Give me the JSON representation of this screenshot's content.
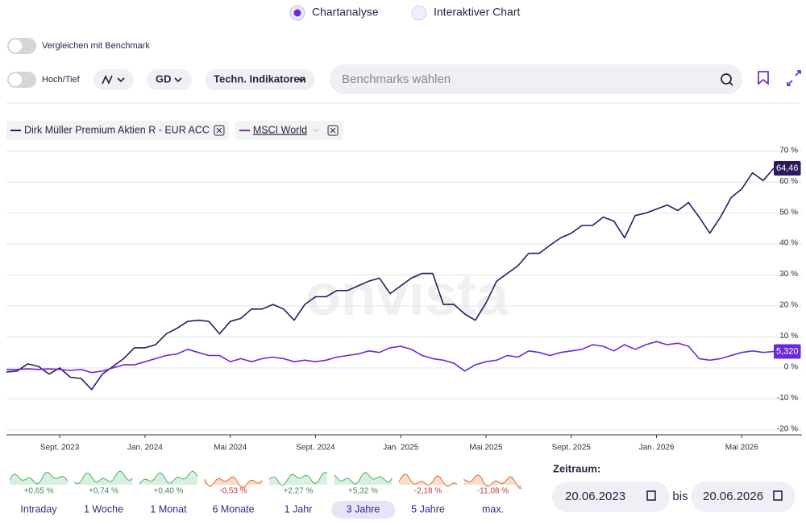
{
  "view_tabs": [
    "Chartanalyse",
    "Interaktiver Chart"
  ],
  "toggles": [
    "Vergleichen mit Benchmark",
    "Hoch/Tief"
  ],
  "toolbar": {
    "average": "GD",
    "indicators": "Techn. Indikatoren",
    "search_placeholder": "Benchmarks wählen"
  },
  "watermark": "onvista",
  "chart_data": {
    "type": "line",
    "categories": [
      null,
      null,
      null,
      null,
      null,
      "Sept. 2023",
      null,
      null,
      null,
      null,
      null,
      null,
      null,
      "Jan. 2024",
      null,
      null,
      null,
      null,
      null,
      null,
      null,
      "Mai 2024",
      null,
      null,
      null,
      null,
      null,
      null,
      null,
      "Sept. 2024",
      null,
      null,
      null,
      null,
      null,
      null,
      null,
      "Jan. 2025",
      null,
      null,
      null,
      null,
      null,
      null,
      null,
      "Mai 2025",
      null,
      null,
      null,
      null,
      null,
      null,
      null,
      "Sept. 2025",
      null,
      null,
      null,
      null,
      null,
      null,
      null,
      "Jan. 2026",
      null,
      null,
      null,
      null,
      null,
      null,
      null,
      "Mai 2026",
      null,
      null,
      null
    ],
    "series": [
      {
        "name": "Dirk Müller Premium Aktien R - EUR ACC",
        "color": "#2d1a5e",
        "values": [
          -1.3,
          -1,
          1.3,
          0.5,
          -2,
          0,
          -3,
          -3.4,
          -7,
          -2,
          0.5,
          3,
          6.5,
          6.5,
          7.5,
          11,
          12.8,
          15,
          15.4,
          15,
          11,
          15,
          16,
          19,
          19,
          20.5,
          19,
          15.4,
          20.5,
          23,
          23,
          25,
          25,
          26.5,
          28,
          29,
          24,
          26.5,
          29,
          30.5,
          30.5,
          20.5,
          20.5,
          17.4,
          15.4,
          21,
          28,
          30.5,
          33,
          37,
          37,
          39.6,
          42,
          43.5,
          46,
          46,
          48.7,
          47.4,
          42,
          49.2,
          50,
          51.3,
          52.6,
          50.8,
          53.4,
          48.7,
          43.5,
          48.7,
          55,
          57.8,
          63,
          60.5,
          64.46
        ],
        "value_labels": [
          null,
          null,
          null,
          null,
          null,
          null,
          null,
          null,
          null,
          null,
          null,
          null,
          null,
          null,
          null,
          null,
          null,
          null,
          null,
          null,
          null,
          null,
          null,
          null,
          null,
          null,
          null,
          null,
          null,
          null,
          null,
          null,
          null,
          null,
          null,
          null,
          null,
          null,
          null,
          null,
          null,
          null,
          null,
          null,
          null,
          null,
          null,
          null,
          null,
          null,
          null,
          null,
          null,
          null,
          null,
          null,
          null,
          null,
          null,
          null,
          null,
          null,
          null,
          null,
          null,
          null,
          null,
          null,
          null,
          null,
          null,
          null,
          "64,46"
        ]
      },
      {
        "name": "MSCI World",
        "color": "#6a2bd6",
        "values": [
          -0.5,
          -0.5,
          -0.3,
          -0.5,
          -0.3,
          -0.5,
          -0.8,
          -0.5,
          -1.5,
          -1,
          0,
          1,
          1,
          2,
          3,
          4,
          4.5,
          6,
          5,
          4,
          4,
          2,
          3,
          2,
          3,
          3.5,
          3,
          2,
          2.5,
          2,
          2.5,
          3.5,
          4,
          4.5,
          5.5,
          5,
          6.5,
          7,
          6,
          4,
          3,
          2.5,
          1.5,
          -1,
          1,
          2,
          2.5,
          4,
          3.5,
          5.5,
          5,
          4,
          5,
          5.5,
          6,
          7.5,
          7,
          5.5,
          7.5,
          6,
          7.5,
          8.5,
          7.5,
          8,
          7,
          3,
          2.5,
          3,
          4,
          5,
          5.5,
          5,
          5.32
        ],
        "value_labels": [
          null,
          null,
          null,
          null,
          null,
          null,
          null,
          null,
          null,
          null,
          null,
          null,
          null,
          null,
          null,
          null,
          null,
          null,
          null,
          null,
          null,
          null,
          null,
          null,
          null,
          null,
          null,
          null,
          null,
          null,
          null,
          null,
          null,
          null,
          null,
          null,
          null,
          null,
          null,
          null,
          null,
          null,
          null,
          null,
          null,
          null,
          null,
          null,
          null,
          null,
          null,
          null,
          null,
          null,
          null,
          null,
          null,
          null,
          null,
          null,
          null,
          null,
          null,
          null,
          null,
          null,
          null,
          null,
          null,
          null,
          null,
          null,
          "5,320"
        ]
      }
    ],
    "ylim": [
      -21.6,
      72
    ],
    "yticks": [
      {
        "value": 70,
        "label": "70 %"
      },
      {
        "value": 60,
        "label": "60 %"
      },
      {
        "value": 50,
        "label": "50 %"
      },
      {
        "value": 40,
        "label": "40 %"
      },
      {
        "value": 30,
        "label": "30 %"
      },
      {
        "value": 20,
        "label": "20 %"
      },
      {
        "value": 10,
        "label": "10 %"
      },
      {
        "value": 0,
        "label": "0 %"
      },
      {
        "value": -10,
        "label": "-10 %"
      },
      {
        "value": -20,
        "label": "-20 %"
      }
    ],
    "grid": true
  },
  "periods": [
    {
      "label": "Intraday",
      "change": "+0,65 %"
    },
    {
      "label": "1 Woche",
      "change": "+0,74 %"
    },
    {
      "label": "1 Monat",
      "change": "+0,40 %"
    },
    {
      "label": "6 Monate",
      "change": "-0,53 %"
    },
    {
      "label": "1 Jahr",
      "change": "+2,27 %"
    },
    {
      "label": "3 Jahre",
      "change": "+5,32 %"
    },
    {
      "label": "5 Jahre",
      "change": "-2,18 %"
    },
    {
      "label": "max.",
      "change": "-11,08 %"
    }
  ],
  "range": {
    "label": "Zeitraum:",
    "from": "20.06.2023",
    "separator": "bis",
    "to": "20.06.2026"
  }
}
